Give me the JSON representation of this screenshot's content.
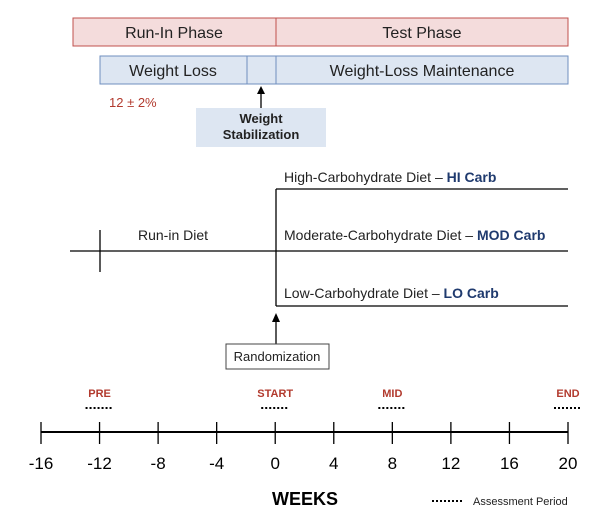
{
  "phases": {
    "run_in": "Run-In Phase",
    "test": "Test Phase"
  },
  "subphases": {
    "weight_loss": "Weight Loss",
    "maintenance": "Weight-Loss Maintenance"
  },
  "weight_loss_target": "12 ± 2%",
  "stabilization": {
    "line1": "Weight",
    "line2": "Stabilization"
  },
  "diets": {
    "run_in": "Run-in Diet",
    "hi": {
      "label": "High-Carbohydrate Diet – ",
      "abbr": "HI Carb"
    },
    "mod": {
      "label": "Moderate-Carbohydrate Diet – ",
      "abbr": "MOD Carb"
    },
    "lo": {
      "label": "Low-Carbohydrate Diet – ",
      "abbr": "LO Carb"
    }
  },
  "randomization": "Randomization",
  "assessments": [
    {
      "label": "PRE",
      "week": -12
    },
    {
      "label": "START",
      "week": 0
    },
    {
      "label": "MID",
      "week": 8
    },
    {
      "label": "END",
      "week": 20
    }
  ],
  "axis": {
    "ticks": [
      -16,
      -12,
      -8,
      -4,
      0,
      4,
      8,
      12,
      16,
      20
    ],
    "title": "WEEKS"
  },
  "legend": "Assessment Period",
  "colors": {
    "phase_fill": "#f4dcdc",
    "phase_stroke": "#c0504d",
    "sub_fill": "#dde6f2",
    "sub_stroke": "#6f8fbf",
    "accent_red": "#b23a2e",
    "accent_navy": "#1f3a6e"
  }
}
